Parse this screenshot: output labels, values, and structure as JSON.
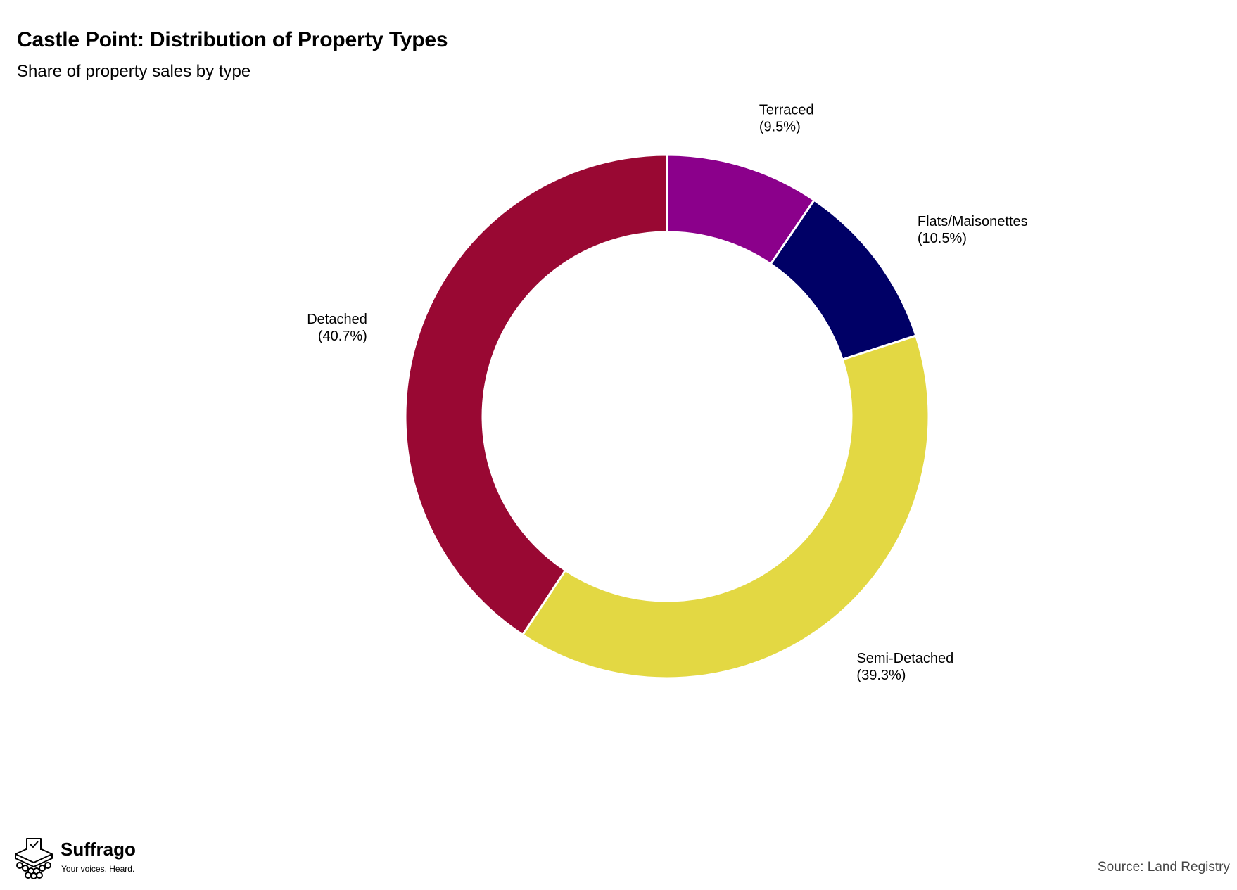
{
  "chart_data": {
    "type": "pie",
    "variant": "donut",
    "title": "Castle Point: Distribution of Property Types",
    "subtitle": "Share of property sales by type",
    "slices": [
      {
        "label": "Terraced",
        "value_text": "(9.5%)",
        "value": 9.5,
        "color": "#8B008B"
      },
      {
        "label": "Flats/Maisonettes",
        "value_text": "(10.5%)",
        "value": 10.5,
        "color": "#000066"
      },
      {
        "label": "Semi-Detached",
        "value_text": "(39.3%)",
        "value": 39.3,
        "color": "#E3D843"
      },
      {
        "label": "Detached",
        "value_text": "(40.7%)",
        "value": 40.7,
        "color": "#990833"
      }
    ],
    "legend": "none",
    "grid": false
  },
  "footer": {
    "brand_name": "Suffrago",
    "brand_tagline": "Your voices. Heard.",
    "source": "Source: Land Registry"
  },
  "icons": {
    "brand_logo": "ballot-box-icon"
  }
}
